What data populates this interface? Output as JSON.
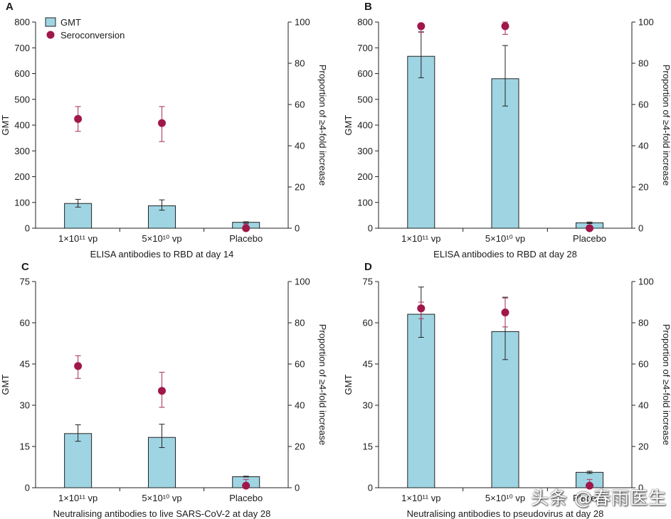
{
  "chart_data": [
    {
      "panel": "A",
      "type": "bar",
      "title": "",
      "xlabel": "ELISA antibodies to RBD at day 14",
      "ylabel": "GMT",
      "y2label": "Proportion of ≥4-fold increase",
      "ylim": [
        0,
        800
      ],
      "yticks": [
        0,
        100,
        200,
        300,
        400,
        500,
        600,
        700,
        800
      ],
      "y2lim": [
        0,
        100
      ],
      "y2ticks": [
        0,
        20,
        40,
        60,
        80,
        100
      ],
      "categories": [
        "1×10¹¹ vp",
        "5×10¹⁰ vp",
        "Placebo"
      ],
      "legend": {
        "position": "top-left",
        "bar_label": "GMT",
        "dot_label": "Seroconversion"
      },
      "series": [
        {
          "name": "GMT",
          "kind": "bar",
          "axis": "left",
          "values": [
            96,
            87,
            23
          ],
          "err_low": [
            82,
            70,
            19
          ],
          "err_high": [
            112,
            110,
            25
          ]
        },
        {
          "name": "Seroconversion",
          "kind": "point",
          "axis": "right",
          "values": [
            53,
            51,
            0
          ],
          "err_low": [
            47,
            42,
            0
          ],
          "err_high": [
            59,
            59,
            2
          ]
        }
      ]
    },
    {
      "panel": "B",
      "type": "bar",
      "title": "",
      "xlabel": "ELISA antibodies to RBD at day 28",
      "ylabel": "GMT",
      "y2label": "Proportion of ≥4-fold increase",
      "ylim": [
        0,
        800
      ],
      "yticks": [
        0,
        100,
        200,
        300,
        400,
        500,
        600,
        700,
        800
      ],
      "y2lim": [
        0,
        100
      ],
      "y2ticks": [
        0,
        20,
        40,
        60,
        80,
        100
      ],
      "categories": [
        "1×10¹¹ vp",
        "5×10¹⁰ vp",
        "Placebo"
      ],
      "series": [
        {
          "name": "GMT",
          "kind": "bar",
          "axis": "left",
          "values": [
            667,
            580,
            21
          ],
          "err_low": [
            584,
            474,
            18
          ],
          "err_high": [
            762,
            709,
            24
          ]
        },
        {
          "name": "Seroconversion",
          "kind": "point",
          "axis": "right",
          "values": [
            98,
            98,
            0
          ],
          "err_low": [
            95,
            94,
            0
          ],
          "err_high": [
            99,
            100,
            1
          ]
        }
      ]
    },
    {
      "panel": "C",
      "type": "bar",
      "title": "",
      "xlabel": "Neutralising antibodies to live SARS-CoV-2 at day 28",
      "ylabel": "GMT",
      "y2label": "Proportion of ≥4-fold increase",
      "ylim": [
        0,
        75
      ],
      "yticks": [
        0,
        15,
        30,
        45,
        60,
        75
      ],
      "y2lim": [
        0,
        100
      ],
      "y2ticks": [
        0,
        20,
        40,
        60,
        80,
        100
      ],
      "categories": [
        "1×10¹¹ vp",
        "5×10¹⁰ vp",
        "Placebo"
      ],
      "series": [
        {
          "name": "GMT",
          "kind": "bar",
          "axis": "left",
          "values": [
            19.7,
            18.3,
            4.0
          ],
          "err_low": [
            16.9,
            14.6,
            3.9
          ],
          "err_high": [
            22.9,
            23.1,
            4.2
          ]
        },
        {
          "name": "Seroconversion",
          "kind": "point",
          "axis": "right",
          "values": [
            59,
            47,
            1
          ],
          "err_low": [
            53,
            39,
            0
          ],
          "err_high": [
            64,
            56,
            4
          ]
        }
      ]
    },
    {
      "panel": "D",
      "type": "bar",
      "title": "",
      "xlabel": "Neutralising antibodies to pseudovirus at day 28",
      "ylabel": "GMT",
      "y2label": "Proportion of ≥4-fold increase",
      "ylim": [
        0,
        75
      ],
      "yticks": [
        0,
        15,
        30,
        45,
        60,
        75
      ],
      "y2lim": [
        0,
        100
      ],
      "y2ticks": [
        0,
        20,
        40,
        60,
        80,
        100
      ],
      "categories": [
        "1×10¹¹ vp",
        "5×10¹⁰ vp",
        "Placebo"
      ],
      "series": [
        {
          "name": "GMT",
          "kind": "bar",
          "axis": "left",
          "values": [
            63.1,
            56.8,
            5.6
          ],
          "err_low": [
            54.7,
            46.6,
            5.2
          ],
          "err_high": [
            73.0,
            69.3,
            6.0
          ]
        },
        {
          "name": "Seroconversion",
          "kind": "point",
          "axis": "right",
          "values": [
            87,
            85,
            1
          ],
          "err_low": [
            82,
            78,
            0
          ],
          "err_high": [
            90,
            92,
            4
          ]
        }
      ]
    }
  ],
  "colors": {
    "bar_fill": "#9fd5e3",
    "dot": "#a0174a",
    "err_dot": "#b04a72",
    "axis": "#222222"
  },
  "watermark": "头条 @春雨医生"
}
